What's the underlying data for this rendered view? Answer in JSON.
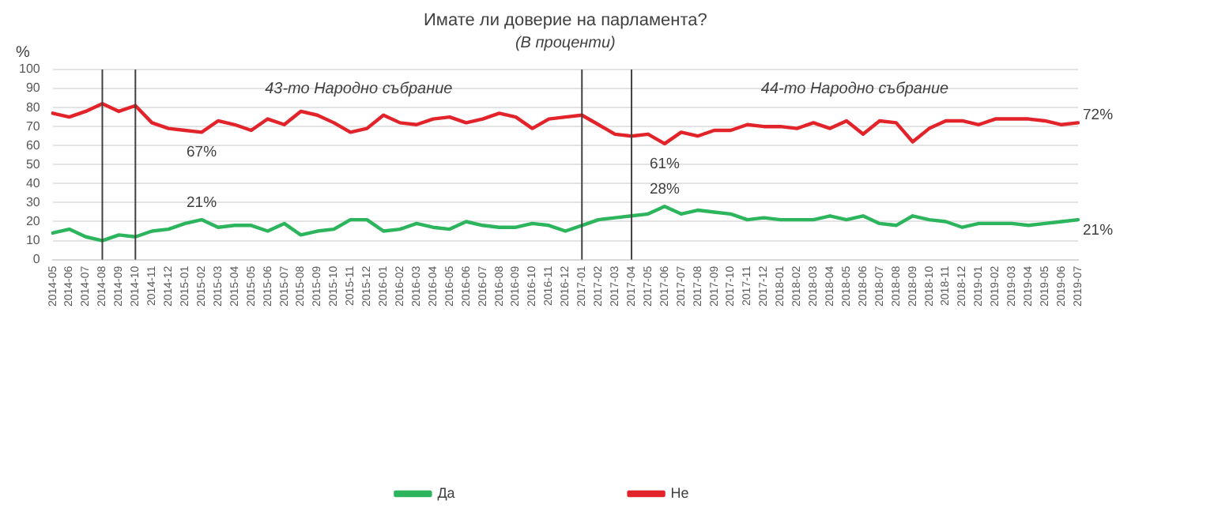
{
  "chart_data": {
    "type": "line",
    "title": "Имате ли доверие на парламента?",
    "subtitle": "(В проценти)",
    "ylabel": "%",
    "categories": [
      "2014-05",
      "2014-06",
      "2014-07",
      "2014-08",
      "2014-09",
      "2014-10",
      "2014-11",
      "2014-12",
      "2015-01",
      "2015-02",
      "2015-03",
      "2015-04",
      "2015-05",
      "2015-06",
      "2015-07",
      "2015-08",
      "2015-09",
      "2015-10",
      "2015-11",
      "2015-12",
      "2016-01",
      "2016-02",
      "2016-03",
      "2016-04",
      "2016-05",
      "2016-06",
      "2016-07",
      "2016-08",
      "2016-09",
      "2016-10",
      "2016-11",
      "2016-12",
      "2017-01",
      "2017-02",
      "2017-03",
      "2017-04",
      "2017-05",
      "2017-06",
      "2017-07",
      "2017-08",
      "2017-09",
      "2017-10",
      "2017-11",
      "2017-12",
      "2018-01",
      "2018-02",
      "2018-03",
      "2018-04",
      "2018-05",
      "2018-06",
      "2018-07",
      "2018-08",
      "2018-09",
      "2018-10",
      "2018-11",
      "2018-12",
      "2019-01",
      "2019-02",
      "2019-03",
      "2019-04",
      "2019-05",
      "2019-06",
      "2019-07"
    ],
    "series": [
      {
        "name": "Да",
        "color": "#2db55d",
        "values": [
          14,
          16,
          12,
          10,
          13,
          12,
          15,
          16,
          19,
          21,
          17,
          18,
          18,
          15,
          19,
          13,
          15,
          16,
          21,
          21,
          15,
          16,
          19,
          17,
          16,
          20,
          18,
          17,
          17,
          19,
          18,
          15,
          18,
          21,
          22,
          23,
          24,
          28,
          24,
          26,
          25,
          24,
          21,
          22,
          21,
          21,
          21,
          23,
          21,
          23,
          19,
          18,
          23,
          21,
          20,
          17,
          19,
          19,
          19,
          18,
          19,
          20,
          21
        ]
      },
      {
        "name": "Не",
        "color": "#e3232a",
        "values": [
          77,
          75,
          78,
          82,
          78,
          81,
          72,
          69,
          68,
          67,
          73,
          71,
          68,
          74,
          71,
          78,
          76,
          72,
          67,
          69,
          76,
          72,
          71,
          74,
          75,
          72,
          74,
          77,
          75,
          69,
          74,
          75,
          76,
          71,
          66,
          65,
          66,
          61,
          67,
          65,
          68,
          68,
          71,
          70,
          70,
          69,
          72,
          69,
          73,
          66,
          73,
          72,
          62,
          69,
          73,
          73,
          71,
          74,
          74,
          74,
          73,
          71,
          72
        ]
      }
    ],
    "ylim": [
      0,
      100
    ],
    "yticks": [
      0,
      10,
      20,
      30,
      40,
      50,
      60,
      70,
      80,
      90,
      100
    ],
    "grid": "y",
    "legend": "bottom",
    "marker": "none",
    "line_style": "solid",
    "ref_lines": [
      {
        "axis": "x",
        "value": "2014-08",
        "color": "#404040"
      },
      {
        "axis": "x",
        "value": "2014-10",
        "color": "#404040"
      },
      {
        "axis": "x",
        "value": "2017-01",
        "color": "#404040"
      },
      {
        "axis": "x",
        "value": "2017-04",
        "color": "#404040"
      }
    ],
    "annotations": [
      "43-то Народно събрание",
      "44-то Народно събрание",
      {
        "text": "67%",
        "x": "2015-02",
        "y": 67
      },
      {
        "text": "21%",
        "x": "2015-02",
        "y": 21
      },
      {
        "text": "61%",
        "x": "2017-06",
        "y": 61
      },
      {
        "text": "28%",
        "x": "2017-06",
        "y": 28
      },
      {
        "text": "72%",
        "x": "2019-07",
        "y": 72
      },
      {
        "text": "21%",
        "x": "2019-07",
        "y": 21
      }
    ]
  }
}
